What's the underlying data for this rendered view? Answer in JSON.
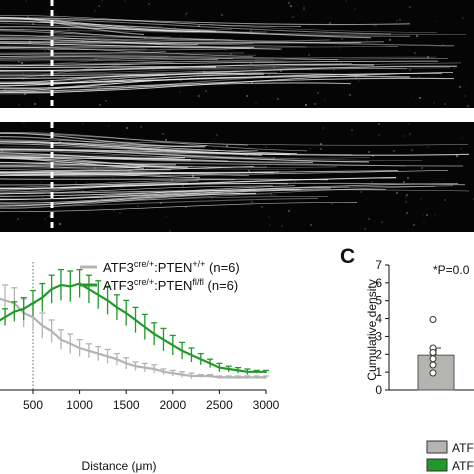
{
  "figure": {
    "panel_c_letter": "C",
    "legend": [
      {
        "label_main": "ATF3",
        "label_sup1": "cre/+",
        "label_mid": ":PTEN",
        "label_sup2": "+/+",
        "label_end": " (n=6)",
        "color": "#b4b4b0"
      },
      {
        "label_main": "ATF3",
        "label_sup1": "cre/+",
        "label_mid": ":PTEN",
        "label_sup2": "fl/fl",
        "label_end": " (n=6)",
        "color": "#22992a"
      }
    ],
    "bar_legend": [
      {
        "label": "ATF",
        "color": "#b4b4b0"
      },
      {
        "label": "ATF",
        "color": "#22992a"
      }
    ],
    "stat_text": "*P=0.0",
    "colors": {
      "micrograph_bg": "#050505",
      "axon": "#e8e8e8",
      "dash": "#ffffff"
    }
  },
  "chart_data": [
    {
      "type": "line",
      "xlabel": "Distance (μm)",
      "x_ticks": [
        "500",
        "1000",
        "1500",
        "2000",
        "2500",
        "3000"
      ],
      "xlim": [
        -100,
        3000
      ],
      "ylim": [
        0,
        1.0
      ],
      "reference_line_x": 500,
      "series": [
        {
          "name": "ATF3cre/+:PTEN+/+ (n=6)",
          "color": "#b4b4b0",
          "x": [
            0,
            100,
            200,
            300,
            400,
            500,
            600,
            700,
            800,
            900,
            1000,
            1100,
            1200,
            1300,
            1400,
            1500,
            1600,
            1700,
            1800,
            1900,
            2000,
            2100,
            2200,
            2300,
            2400,
            2500,
            2600,
            2700,
            2800,
            2900,
            3000
          ],
          "y": [
            0.65,
            0.66,
            0.64,
            0.62,
            0.55,
            0.52,
            0.46,
            0.42,
            0.36,
            0.33,
            0.3,
            0.28,
            0.26,
            0.24,
            0.22,
            0.19,
            0.17,
            0.16,
            0.15,
            0.13,
            0.12,
            0.11,
            0.1,
            0.1,
            0.1,
            0.09,
            0.09,
            0.09,
            0.09,
            0.09,
            0.09
          ],
          "err": [
            0.12,
            0.12,
            0.11,
            0.11,
            0.1,
            0.1,
            0.09,
            0.08,
            0.07,
            0.07,
            0.06,
            0.05,
            0.05,
            0.05,
            0.04,
            0.04,
            0.03,
            0.03,
            0.03,
            0.02,
            0.02,
            0.02,
            0.02,
            0.01,
            0.01,
            0.01,
            0.01,
            0.01,
            0.01,
            0.01,
            0.01
          ]
        },
        {
          "name": "ATF3cre/+:PTENfl/fl (n=6)",
          "color": "#22992a",
          "x": [
            0,
            100,
            200,
            300,
            400,
            500,
            600,
            700,
            800,
            900,
            1000,
            1100,
            1200,
            1300,
            1400,
            1500,
            1600,
            1700,
            1800,
            1900,
            2000,
            2100,
            2200,
            2300,
            2400,
            2500,
            2600,
            2700,
            2800,
            2900,
            3000
          ],
          "y": [
            0.5,
            0.48,
            0.52,
            0.56,
            0.58,
            0.62,
            0.66,
            0.72,
            0.75,
            0.74,
            0.76,
            0.72,
            0.68,
            0.64,
            0.59,
            0.55,
            0.5,
            0.45,
            0.4,
            0.36,
            0.32,
            0.28,
            0.25,
            0.22,
            0.19,
            0.16,
            0.15,
            0.14,
            0.13,
            0.13,
            0.13
          ],
          "err": [
            0.05,
            0.05,
            0.06,
            0.07,
            0.08,
            0.09,
            0.1,
            0.1,
            0.11,
            0.11,
            0.1,
            0.1,
            0.1,
            0.1,
            0.09,
            0.09,
            0.09,
            0.09,
            0.08,
            0.08,
            0.07,
            0.06,
            0.05,
            0.04,
            0.03,
            0.03,
            0.02,
            0.02,
            0.02,
            0.01,
            0.01
          ]
        }
      ]
    },
    {
      "type": "bar",
      "ylabel": "Cumulative density",
      "ylim": [
        0,
        7
      ],
      "y_ticks": [
        "0",
        "1",
        "2",
        "3",
        "4",
        "5",
        "6",
        "7"
      ],
      "bars": [
        {
          "value": 1.95,
          "err": 0.4,
          "color": "#b4b4b0"
        }
      ],
      "points": [
        3.95,
        2.35,
        2.1,
        1.75,
        1.4,
        0.95
      ]
    }
  ]
}
